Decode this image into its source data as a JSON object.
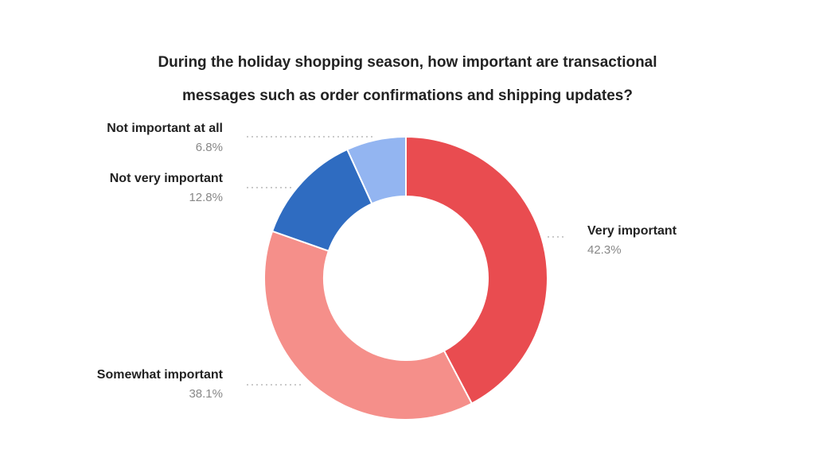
{
  "chart_data": {
    "type": "pie",
    "style": "donut",
    "title_lines": [
      "During the holiday shopping season, how important are transactional",
      "messages such as order confirmations and shipping updates?"
    ],
    "slices": [
      {
        "label": "Very important",
        "value": 42.3,
        "value_label": "42.3%",
        "color": "#e94c50"
      },
      {
        "label": "Somewhat important",
        "value": 38.1,
        "value_label": "38.1%",
        "color": "#f58f8a"
      },
      {
        "label": "Not very important",
        "value": 12.8,
        "value_label": "12.8%",
        "color": "#2f6cc1"
      },
      {
        "label": "Not important at all",
        "value": 6.8,
        "value_label": "6.8%",
        "color": "#93b5f1"
      }
    ],
    "legend": "none"
  }
}
